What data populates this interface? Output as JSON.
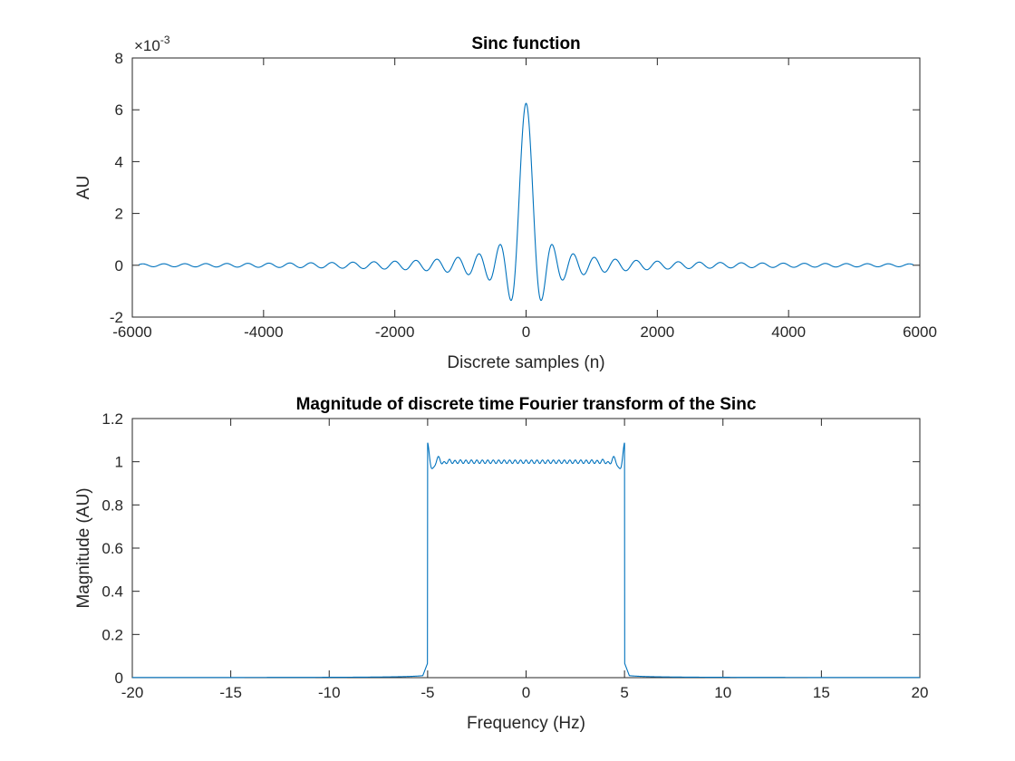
{
  "figure": {
    "background": "#ffffff",
    "axis_color": "#262626",
    "line_color": "#0072BD"
  },
  "chart_data": [
    {
      "type": "line",
      "title": "Sinc function",
      "xlabel": "Discrete samples (n)",
      "ylabel": "AU",
      "exponent_label": "×10",
      "exponent_power": "-3",
      "xlim": [
        -6000,
        6000
      ],
      "ylim": [
        -0.002,
        0.008
      ],
      "xticks": [
        -6000,
        -4000,
        -2000,
        0,
        2000,
        4000,
        6000
      ],
      "xtick_labels": [
        "-6000",
        "-4000",
        "-2000",
        "0",
        "2000",
        "4000",
        "6000"
      ],
      "yticks": [
        -0.002,
        0,
        0.002,
        0.004,
        0.006,
        0.008
      ],
      "ytick_labels": [
        "-2",
        "0",
        "2",
        "4",
        "6",
        "8"
      ],
      "grid": false,
      "series": [
        {
          "function": "sinc",
          "peak": 0.00625,
          "main_lobe_half_width": 160,
          "x_start": -5900,
          "x_end": 5900,
          "step": 4
        }
      ]
    },
    {
      "type": "line",
      "title": "Magnitude of discrete time Fourier transform of the Sinc",
      "xlabel": "Frequency (Hz)",
      "ylabel": "Magnitude (AU)",
      "xlim": [
        -20,
        20
      ],
      "ylim": [
        0,
        1.2
      ],
      "xticks": [
        -20,
        -15,
        -10,
        -5,
        0,
        5,
        10,
        15,
        20
      ],
      "xtick_labels": [
        "-20",
        "-15",
        "-10",
        "-5",
        "0",
        "5",
        "10",
        "15",
        "20"
      ],
      "yticks": [
        0,
        0.2,
        0.4,
        0.6,
        0.8,
        1,
        1.2
      ],
      "ytick_labels": [
        "0",
        "0.2",
        "0.4",
        "0.6",
        "0.8",
        "1",
        "1.2"
      ],
      "grid": false,
      "series": [
        {
          "function": "rect_spectrum",
          "passband": [
            -5,
            5
          ],
          "passband_level": 1.0,
          "edge_overshoot": 1.08,
          "ripple_cycles_in_passband": 36,
          "x_start": -20,
          "x_end": 20
        }
      ]
    }
  ]
}
